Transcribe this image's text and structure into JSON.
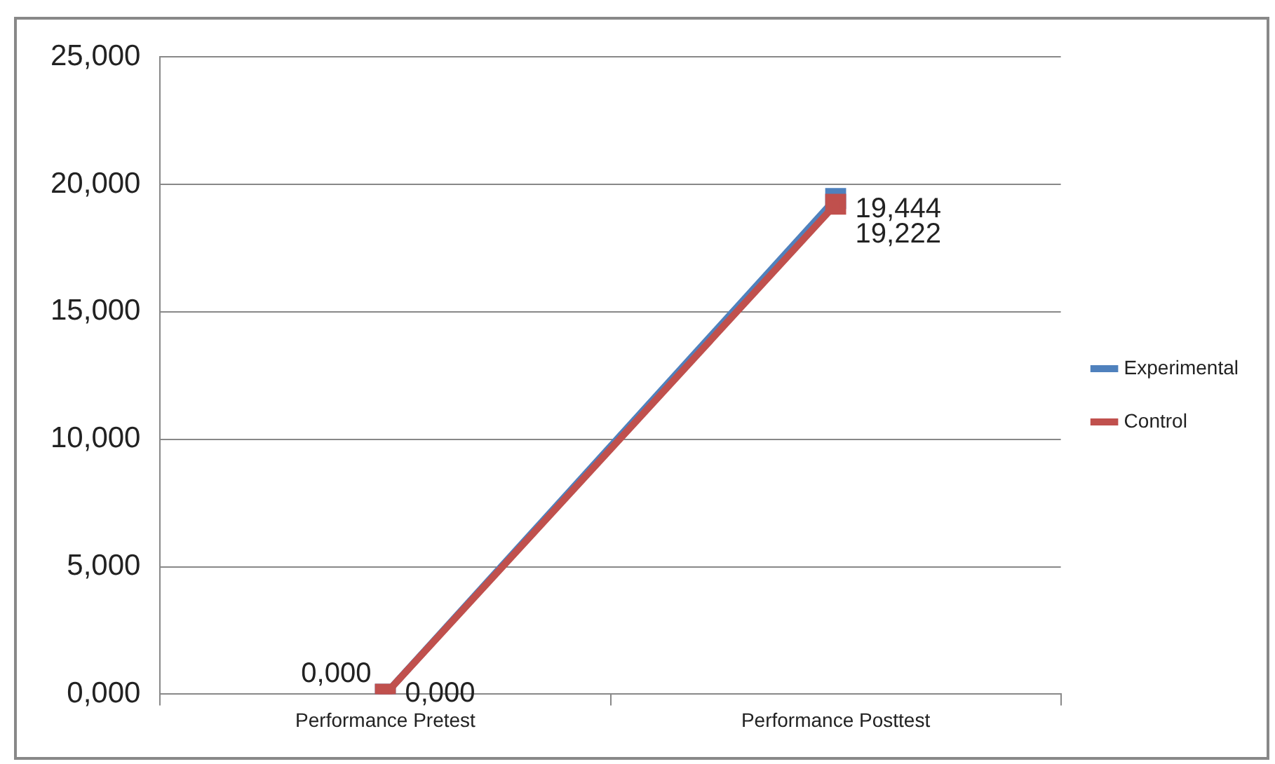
{
  "chart_data": {
    "type": "line",
    "categories": [
      "Performance Pretest",
      "Performance Posttest"
    ],
    "series": [
      {
        "name": "Experimental",
        "color": "#4f81bd",
        "values": [
          0,
          19.444
        ],
        "value_labels": [
          "0,000",
          "19,444"
        ]
      },
      {
        "name": "Control",
        "color": "#c0504d",
        "values": [
          0,
          19.222
        ],
        "value_labels": [
          "0,000",
          "19,222"
        ]
      }
    ],
    "ylim": [
      0,
      25
    ],
    "yticks": [
      {
        "value": 0,
        "label": "0,000"
      },
      {
        "value": 5,
        "label": "5,000"
      },
      {
        "value": 10,
        "label": "10,000"
      },
      {
        "value": 15,
        "label": "15,000"
      },
      {
        "value": 20,
        "label": "20,000"
      },
      {
        "value": 25,
        "label": "25,000"
      }
    ],
    "grid": "y",
    "legend": "right",
    "marker": "square",
    "line_style": "solid"
  }
}
